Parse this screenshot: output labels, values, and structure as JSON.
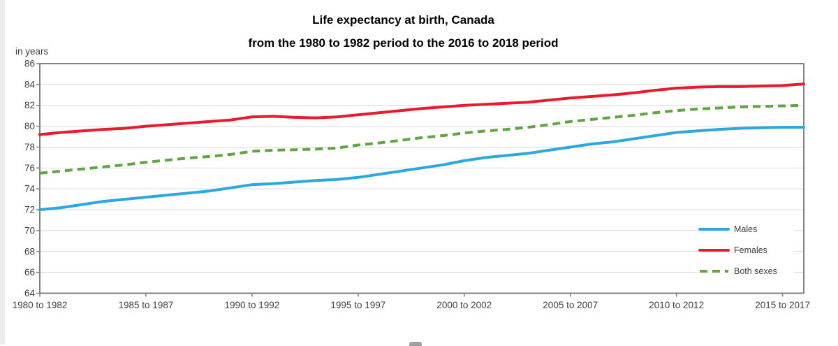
{
  "title": {
    "line1": "Life expectancy at birth, Canada",
    "line2": "from the 1980 to 1982 period to the 2016 to 2018 period"
  },
  "chart_data": {
    "type": "line",
    "title": "Life expectancy at birth, Canada",
    "subtitle": "from the 1980 to 1982 period to the 2016 to 2018 period",
    "ylabel": "in years",
    "xlabel": "",
    "ylim": [
      64,
      86
    ],
    "y_tick_step": 2,
    "grid": true,
    "legend_position": "inside-right",
    "x_first_period": "1980 to 1982",
    "x_last_period": "2016 to 2018",
    "x_tick_labels": [
      "1980 to 1982",
      "1985 to 1987",
      "1990 to 1992",
      "1995 to 1997",
      "2000 to 2002",
      "2005 to 2007",
      "2010 to 2012",
      "2015 to 2017"
    ],
    "x_tick_indices": [
      0,
      5,
      10,
      15,
      20,
      25,
      30,
      35
    ],
    "series": [
      {
        "name": "Males",
        "color": "#2CA7DF",
        "dash": null,
        "values": [
          72.0,
          72.2,
          72.5,
          72.8,
          73.0,
          73.2,
          73.4,
          73.6,
          73.8,
          74.1,
          74.4,
          74.5,
          74.65,
          74.8,
          74.9,
          75.1,
          75.4,
          75.7,
          76.0,
          76.3,
          76.7,
          77.0,
          77.2,
          77.4,
          77.7,
          78.0,
          78.3,
          78.5,
          78.8,
          79.1,
          79.4,
          79.55,
          79.7,
          79.8,
          79.85,
          79.9,
          79.9
        ]
      },
      {
        "name": "Females",
        "color": "#E81B2D",
        "dash": null,
        "values": [
          79.2,
          79.4,
          79.55,
          79.7,
          79.8,
          80.0,
          80.15,
          80.3,
          80.45,
          80.6,
          80.9,
          80.95,
          80.85,
          80.8,
          80.9,
          81.1,
          81.3,
          81.5,
          81.7,
          81.85,
          82.0,
          82.1,
          82.2,
          82.3,
          82.5,
          82.7,
          82.85,
          83.0,
          83.2,
          83.45,
          83.65,
          83.75,
          83.8,
          83.8,
          83.85,
          83.9,
          84.05
        ]
      },
      {
        "name": "Both sexes",
        "color": "#5FA544",
        "dash": "11 7",
        "values": [
          75.5,
          75.7,
          75.9,
          76.1,
          76.3,
          76.55,
          76.75,
          76.95,
          77.1,
          77.3,
          77.6,
          77.7,
          77.75,
          77.8,
          77.9,
          78.2,
          78.4,
          78.65,
          78.9,
          79.1,
          79.35,
          79.55,
          79.7,
          79.9,
          80.15,
          80.45,
          80.65,
          80.85,
          81.05,
          81.3,
          81.5,
          81.65,
          81.75,
          81.85,
          81.9,
          81.95,
          82.0
        ]
      }
    ],
    "colors": {
      "grid": "#D9D9D9",
      "axis_border": "#808080",
      "tick": "#808080",
      "axis_text": "#404040"
    }
  }
}
